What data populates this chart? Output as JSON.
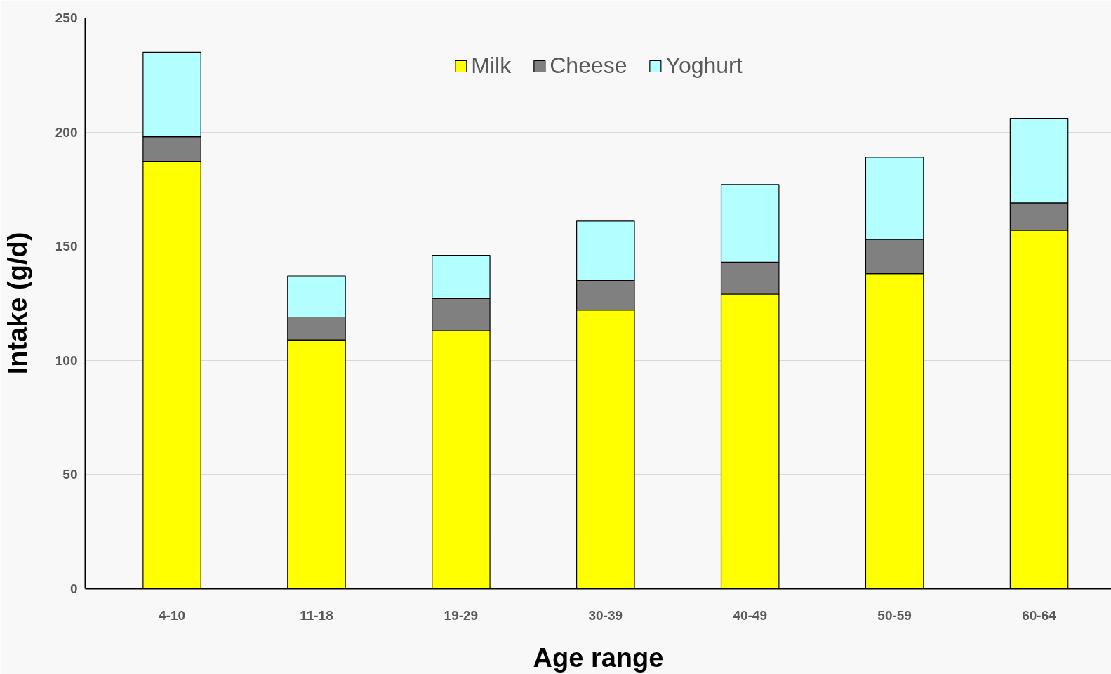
{
  "chart_data": {
    "type": "bar",
    "stacked": true,
    "xlabel": "Age range",
    "ylabel": "Intake (g/d)",
    "categories": [
      "4-10",
      "11-18",
      "19-29",
      "30-39",
      "40-49",
      "50-59",
      "60-64"
    ],
    "series": [
      {
        "name": "Milk",
        "color": "#ffff00",
        "values": [
          187,
          109,
          113,
          122,
          129,
          138,
          157
        ]
      },
      {
        "name": "Cheese",
        "color": "#808080",
        "values": [
          11,
          10,
          14,
          13,
          14,
          15,
          12
        ]
      },
      {
        "name": "Yoghurt",
        "color": "#b3ffff",
        "values": [
          37,
          18,
          19,
          26,
          34,
          36,
          37
        ]
      }
    ],
    "ylim": [
      0,
      250
    ],
    "yticks": [
      0,
      50,
      100,
      150,
      200,
      250
    ],
    "grid": "y",
    "legend": "top"
  }
}
